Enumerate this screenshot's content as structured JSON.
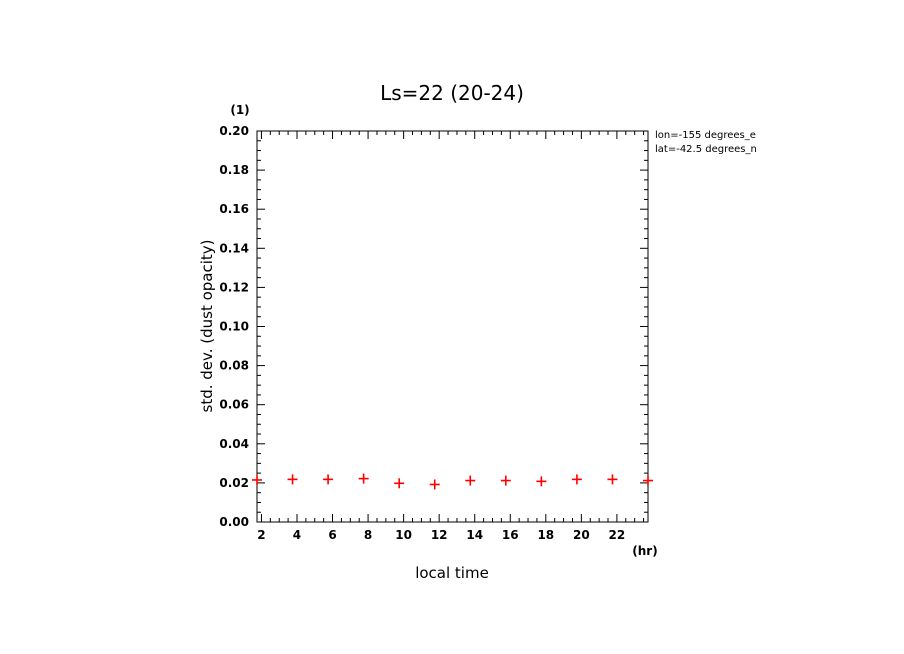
{
  "chart_data": {
    "type": "scatter",
    "title": "Ls=22 (20-24)",
    "xlabel": "local time",
    "ylabel": "std. dev. (dust opacity)",
    "x_unit": "(hr)",
    "y_unit": "(1)",
    "xlim": [
      1.75,
      23.75
    ],
    "ylim": [
      0,
      0.2
    ],
    "x_ticks": [
      2,
      4,
      6,
      8,
      10,
      12,
      14,
      16,
      18,
      20,
      22
    ],
    "x_tick_labels": [
      "2",
      "4",
      "6",
      "8",
      "10",
      "12",
      "14",
      "16",
      "18",
      "20",
      "22"
    ],
    "y_ticks": [
      0,
      0.02,
      0.04,
      0.06,
      0.08,
      0.1,
      0.12,
      0.14,
      0.16,
      0.18,
      0.2
    ],
    "y_tick_labels": [
      "0.00",
      "0.02",
      "0.04",
      "0.06",
      "0.08",
      "0.10",
      "0.12",
      "0.14",
      "0.16",
      "0.18",
      "0.20"
    ],
    "grid": false,
    "marker": "+",
    "marker_color": "#ff0000",
    "series": [
      {
        "x": [
          1.75,
          3.75,
          5.75,
          7.75,
          9.75,
          11.75,
          13.75,
          15.75,
          17.75,
          19.75,
          21.75,
          23.75
        ],
        "y": [
          0.0215,
          0.0218,
          0.0218,
          0.0222,
          0.0198,
          0.0192,
          0.0212,
          0.0212,
          0.0208,
          0.0218,
          0.0218,
          0.0212
        ]
      }
    ],
    "annotations": [
      "lon=-155 degrees_e",
      "lat=-42.5 degrees_n"
    ]
  }
}
